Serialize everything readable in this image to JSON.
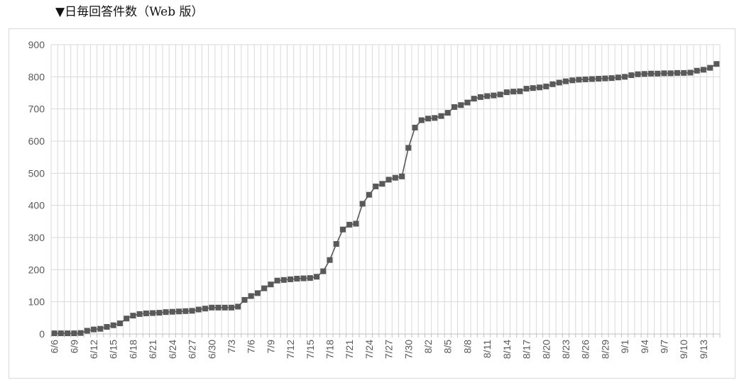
{
  "header": {
    "title": "▼日毎回答件数（Web 版）"
  },
  "colors": {
    "series": "#595959",
    "grid": "#d9d9d9",
    "axis": "#bfbfbf",
    "label": "#595959"
  },
  "chart_data": {
    "type": "line",
    "title": "▼日毎回答件数（Web 版）",
    "xlabel": "",
    "ylabel": "",
    "ylim": [
      0,
      900
    ],
    "yticks": [
      0,
      100,
      200,
      300,
      400,
      500,
      600,
      700,
      800,
      900
    ],
    "grid": true,
    "marker": "square",
    "x_labels": [
      "6/6",
      "6/9",
      "6/12",
      "6/15",
      "6/18",
      "6/21",
      "6/24",
      "6/27",
      "6/30",
      "7/3",
      "7/6",
      "7/9",
      "7/12",
      "7/15",
      "7/18",
      "7/21",
      "7/24",
      "7/27",
      "7/30",
      "8/2",
      "8/5",
      "8/8",
      "8/11",
      "8/14",
      "8/17",
      "8/20",
      "8/23",
      "8/26",
      "8/29",
      "9/1",
      "9/4",
      "9/7",
      "9/10",
      "9/13"
    ],
    "x": [
      "6/6",
      "6/7",
      "6/8",
      "6/9",
      "6/10",
      "6/11",
      "6/12",
      "6/13",
      "6/14",
      "6/15",
      "6/16",
      "6/17",
      "6/18",
      "6/19",
      "6/20",
      "6/21",
      "6/22",
      "6/23",
      "6/24",
      "6/25",
      "6/26",
      "6/27",
      "6/28",
      "6/29",
      "6/30",
      "7/1",
      "7/2",
      "7/3",
      "7/4",
      "7/5",
      "7/6",
      "7/7",
      "7/8",
      "7/9",
      "7/10",
      "7/11",
      "7/12",
      "7/13",
      "7/14",
      "7/15",
      "7/16",
      "7/17",
      "7/18",
      "7/19",
      "7/20",
      "7/21",
      "7/22",
      "7/23",
      "7/24",
      "7/25",
      "7/26",
      "7/27",
      "7/28",
      "7/29",
      "7/30",
      "7/31",
      "8/1",
      "8/2",
      "8/3",
      "8/4",
      "8/5",
      "8/6",
      "8/7",
      "8/8",
      "8/9",
      "8/10",
      "8/11",
      "8/12",
      "8/13",
      "8/14",
      "8/15",
      "8/16",
      "8/17",
      "8/18",
      "8/19",
      "8/20",
      "8/21",
      "8/22",
      "8/23",
      "8/24",
      "8/25",
      "8/26",
      "8/27",
      "8/28",
      "8/29",
      "8/30",
      "8/31",
      "9/1",
      "9/2",
      "9/3",
      "9/4",
      "9/5",
      "9/6",
      "9/7",
      "9/8",
      "9/9",
      "9/10",
      "9/11",
      "9/12",
      "9/13",
      "9/14",
      "9/15"
    ],
    "series": [
      {
        "values": [
          2,
          2,
          2,
          2,
          3,
          10,
          14,
          16,
          22,
          27,
          33,
          48,
          57,
          62,
          64,
          65,
          66,
          68,
          69,
          70,
          71,
          72,
          76,
          79,
          82,
          82,
          82,
          82,
          85,
          106,
          118,
          127,
          142,
          154,
          166,
          168,
          170,
          172,
          173,
          174,
          178,
          195,
          230,
          280,
          325,
          340,
          343,
          405,
          433,
          459,
          467,
          480,
          486,
          490,
          579,
          642,
          665,
          670,
          672,
          678,
          688,
          706,
          712,
          720,
          732,
          737,
          740,
          742,
          745,
          752,
          754,
          755,
          763,
          765,
          767,
          770,
          777,
          782,
          786,
          789,
          791,
          792,
          793,
          794,
          795,
          796,
          798,
          800,
          805,
          808,
          809,
          810,
          810,
          811,
          811,
          812,
          812,
          813,
          819,
          822,
          828,
          840
        ]
      }
    ]
  }
}
